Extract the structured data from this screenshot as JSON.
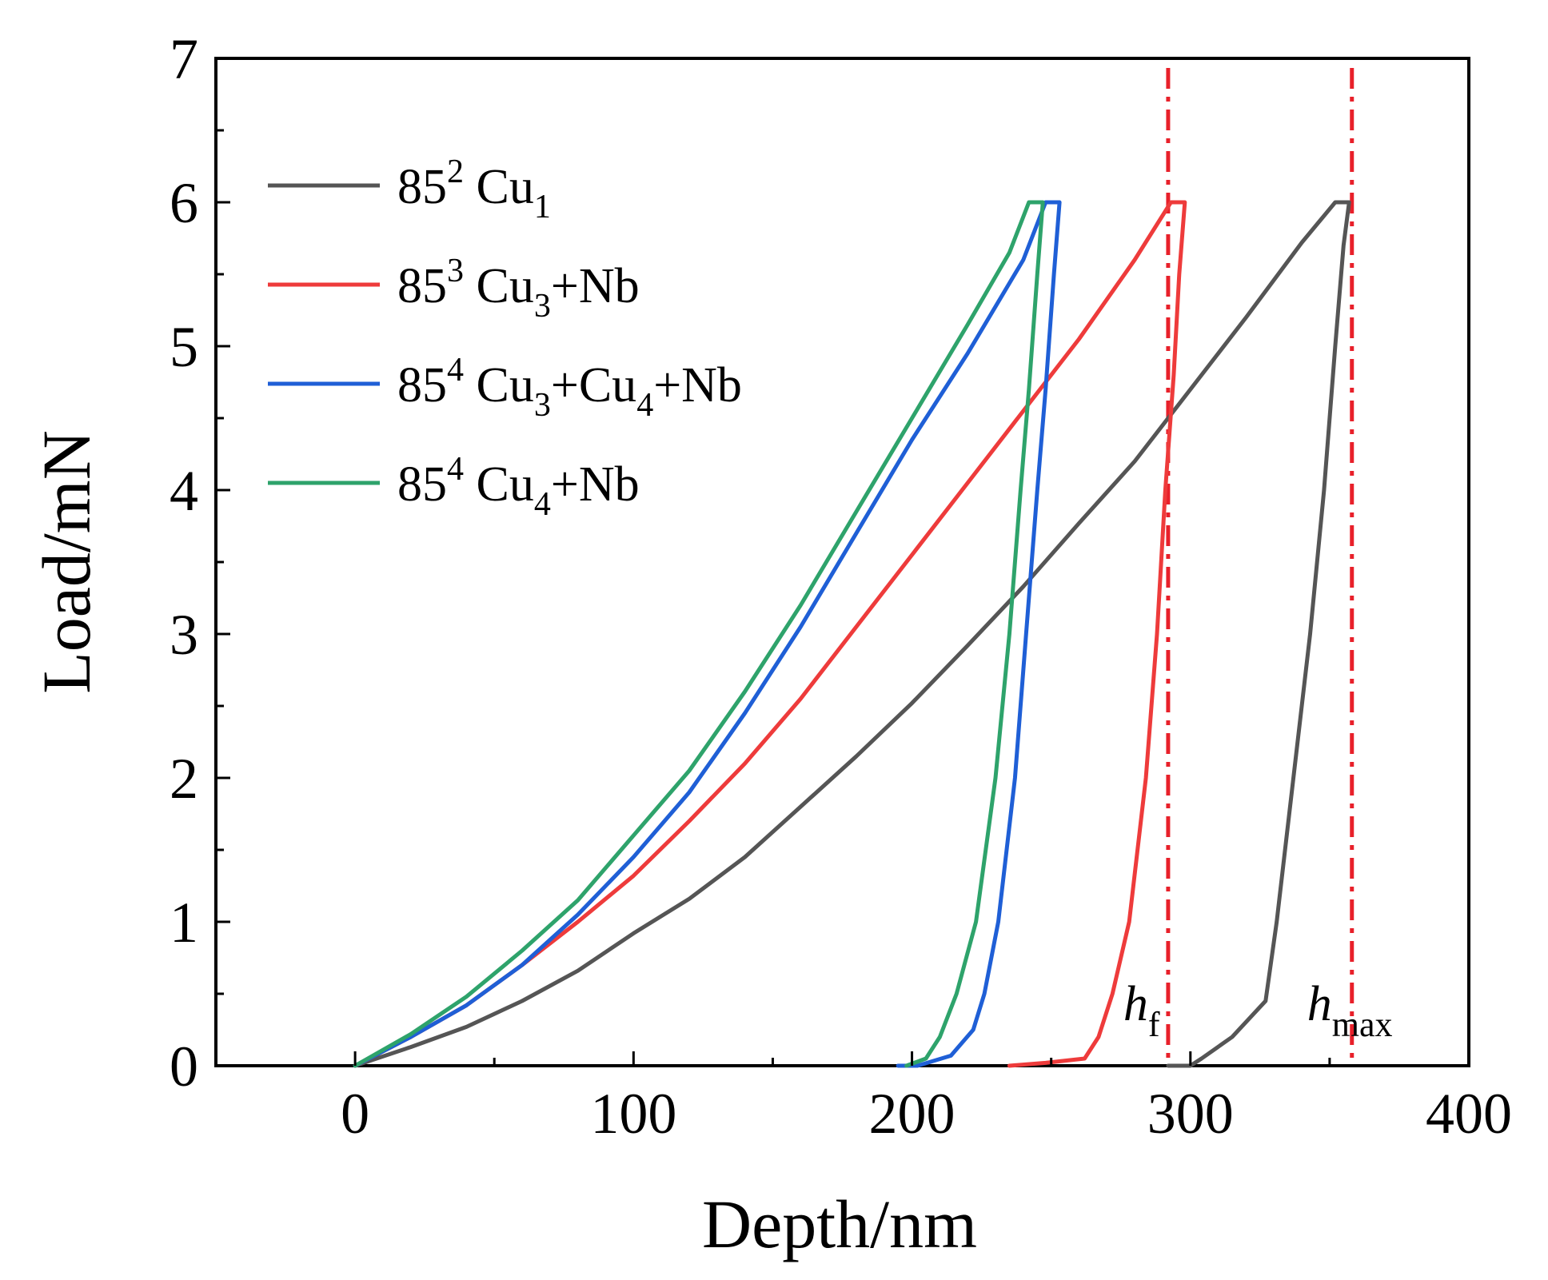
{
  "chart_data": {
    "type": "line",
    "title": "",
    "xlabel": "Depth/nm",
    "ylabel": "Load/mN",
    "xlim": [
      -50,
      400
    ],
    "ylim": [
      0,
      7
    ],
    "xticks": [
      0,
      100,
      200,
      300,
      400
    ],
    "xtick_labels": [
      "0",
      "100",
      "200",
      "300",
      "400"
    ],
    "yticks": [
      0,
      1,
      2,
      3,
      4,
      5,
      6,
      7
    ],
    "ytick_labels": [
      "0",
      "1",
      "2",
      "3",
      "4",
      "5",
      "6",
      "7"
    ],
    "grid": false,
    "legend_position": "top-left",
    "series": [
      {
        "name": "85² Cu₁",
        "legend": {
          "base": "85",
          "sup": "2",
          "parts": [
            [
              "Cu",
              "1"
            ]
          ],
          "suffix": ""
        },
        "color": "#555555",
        "points": [
          [
            0,
            0
          ],
          [
            20,
            0.13
          ],
          [
            40,
            0.27
          ],
          [
            60,
            0.45
          ],
          [
            80,
            0.66
          ],
          [
            100,
            0.92
          ],
          [
            120,
            1.16
          ],
          [
            140,
            1.45
          ],
          [
            160,
            1.8
          ],
          [
            180,
            2.15
          ],
          [
            200,
            2.52
          ],
          [
            220,
            2.92
          ],
          [
            240,
            3.33
          ],
          [
            260,
            3.77
          ],
          [
            280,
            4.2
          ],
          [
            300,
            4.7
          ],
          [
            320,
            5.2
          ],
          [
            340,
            5.72
          ],
          [
            352,
            6.0
          ],
          [
            357,
            6.0
          ],
          [
            355,
            5.7
          ],
          [
            352,
            5.0
          ],
          [
            348,
            4.0
          ],
          [
            343,
            3.0
          ],
          [
            337,
            2.0
          ],
          [
            331,
            1.0
          ],
          [
            327,
            0.45
          ],
          [
            315,
            0.2
          ],
          [
            304,
            0.05
          ],
          [
            300,
            0.0
          ],
          [
            292,
            0.0
          ]
        ]
      },
      {
        "name": "85³ Cu₃+Nb",
        "legend": {
          "base": "85",
          "sup": "3",
          "parts": [
            [
              "Cu",
              "3"
            ]
          ],
          "suffix": "+Nb"
        },
        "color": "#ee3b3b",
        "points": [
          [
            0,
            0
          ],
          [
            20,
            0.2
          ],
          [
            40,
            0.42
          ],
          [
            60,
            0.7
          ],
          [
            80,
            1.0
          ],
          [
            100,
            1.32
          ],
          [
            120,
            1.7
          ],
          [
            140,
            2.1
          ],
          [
            160,
            2.55
          ],
          [
            180,
            3.05
          ],
          [
            200,
            3.55
          ],
          [
            220,
            4.05
          ],
          [
            240,
            4.55
          ],
          [
            260,
            5.05
          ],
          [
            280,
            5.6
          ],
          [
            293,
            6.0
          ],
          [
            298,
            6.0
          ],
          [
            296,
            5.5
          ],
          [
            294,
            4.8
          ],
          [
            291,
            4.0
          ],
          [
            288,
            3.0
          ],
          [
            284,
            2.0
          ],
          [
            278,
            1.0
          ],
          [
            272,
            0.5
          ],
          [
            267,
            0.2
          ],
          [
            262,
            0.05
          ],
          [
            248,
            0.02
          ],
          [
            235,
            0.0
          ]
        ]
      },
      {
        "name": "85⁴ Cu₃+Cu₄+Nb",
        "legend": {
          "base": "85",
          "sup": "4",
          "parts": [
            [
              "Cu",
              "3"
            ],
            [
              "Cu",
              "4"
            ]
          ],
          "suffix": "+Nb"
        },
        "color": "#1f5fd6",
        "points": [
          [
            0,
            0
          ],
          [
            20,
            0.2
          ],
          [
            40,
            0.42
          ],
          [
            60,
            0.7
          ],
          [
            80,
            1.05
          ],
          [
            100,
            1.45
          ],
          [
            120,
            1.9
          ],
          [
            140,
            2.45
          ],
          [
            160,
            3.05
          ],
          [
            180,
            3.7
          ],
          [
            200,
            4.35
          ],
          [
            220,
            4.95
          ],
          [
            240,
            5.6
          ],
          [
            248,
            6.0
          ],
          [
            253,
            6.0
          ],
          [
            251,
            5.5
          ],
          [
            248,
            4.7
          ],
          [
            245,
            4.0
          ],
          [
            241,
            3.0
          ],
          [
            237,
            2.0
          ],
          [
            231,
            1.0
          ],
          [
            226,
            0.5
          ],
          [
            222,
            0.25
          ],
          [
            214,
            0.07
          ],
          [
            202,
            0.0
          ],
          [
            195,
            0.0
          ]
        ]
      },
      {
        "name": "85⁴ Cu₄+Nb",
        "legend": {
          "base": "85",
          "sup": "4",
          "parts": [
            [
              "Cu",
              "4"
            ]
          ],
          "suffix": "+Nb"
        },
        "color": "#2ea36b",
        "points": [
          [
            0,
            0
          ],
          [
            20,
            0.22
          ],
          [
            40,
            0.48
          ],
          [
            60,
            0.8
          ],
          [
            80,
            1.15
          ],
          [
            100,
            1.6
          ],
          [
            120,
            2.05
          ],
          [
            140,
            2.6
          ],
          [
            160,
            3.2
          ],
          [
            180,
            3.85
          ],
          [
            200,
            4.5
          ],
          [
            220,
            5.15
          ],
          [
            235,
            5.65
          ],
          [
            242,
            6.0
          ],
          [
            247,
            6.0
          ],
          [
            245,
            5.5
          ],
          [
            242,
            4.7
          ],
          [
            239,
            4.0
          ],
          [
            235,
            3.0
          ],
          [
            230,
            2.0
          ],
          [
            223,
            1.0
          ],
          [
            216,
            0.5
          ],
          [
            210,
            0.2
          ],
          [
            205,
            0.05
          ],
          [
            198,
            0.0
          ]
        ]
      }
    ],
    "reference_lines": [
      {
        "axis": "x",
        "value": 292,
        "label": {
          "base": "h",
          "sub": "f"
        },
        "color": "#e8202a",
        "style": "dash-dot"
      },
      {
        "axis": "x",
        "value": 358,
        "label": {
          "base": "h",
          "sub": "max"
        },
        "color": "#e8202a",
        "style": "dash-dot"
      }
    ]
  }
}
